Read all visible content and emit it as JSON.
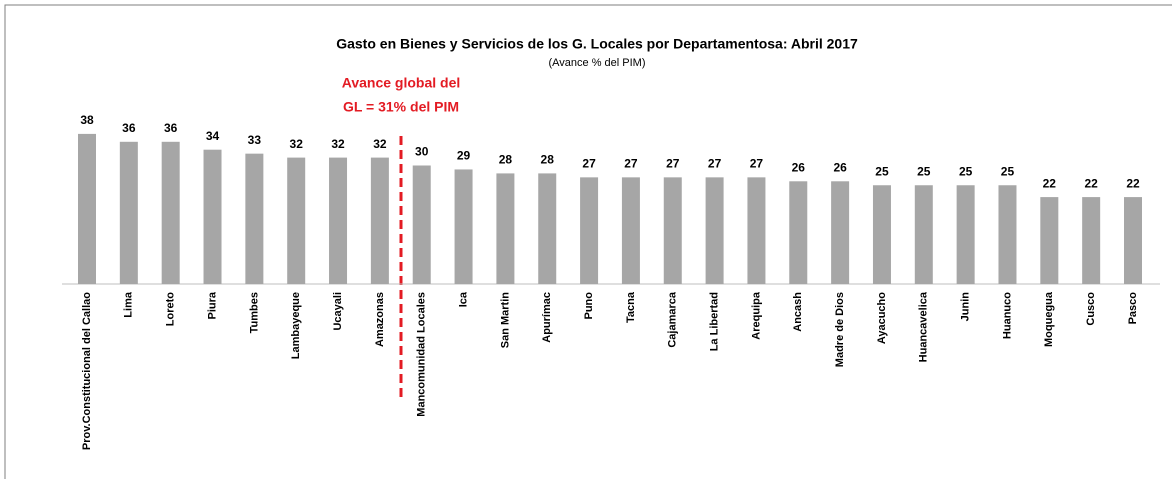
{
  "chart_data": {
    "type": "bar",
    "title": "Gasto en Bienes y Servicios de los G. Locales por Departamentosa:  Abril  2017",
    "subtitle": "(Avance % del PIM)",
    "annotation": [
      "Avance global del",
      "GL = 31% del PIM"
    ],
    "categories": [
      "Prov.Constitucional del Callao",
      "Lima",
      "Loreto",
      "Piura",
      "Tumbes",
      "Lambayeque",
      "Ucayali",
      "Amazonas",
      "Mancomunidad Locales",
      "Ica",
      "San Martin",
      "Apurímac",
      "Puno",
      "Tacna",
      "Cajamarca",
      "La Libertad",
      "Arequipa",
      "Ancash",
      "Madre de Dios",
      "Ayacucho",
      "Huancavelica",
      "Junin",
      "Huanuco",
      "Moquegua",
      "Cusco",
      "Pasco"
    ],
    "values": [
      38,
      36,
      36,
      34,
      33,
      32,
      32,
      32,
      30,
      29,
      28,
      28,
      27,
      27,
      27,
      27,
      27,
      26,
      26,
      25,
      25,
      25,
      25,
      22,
      22,
      22
    ],
    "color": "#a6a6a6",
    "ylim": [
      0,
      40
    ]
  }
}
